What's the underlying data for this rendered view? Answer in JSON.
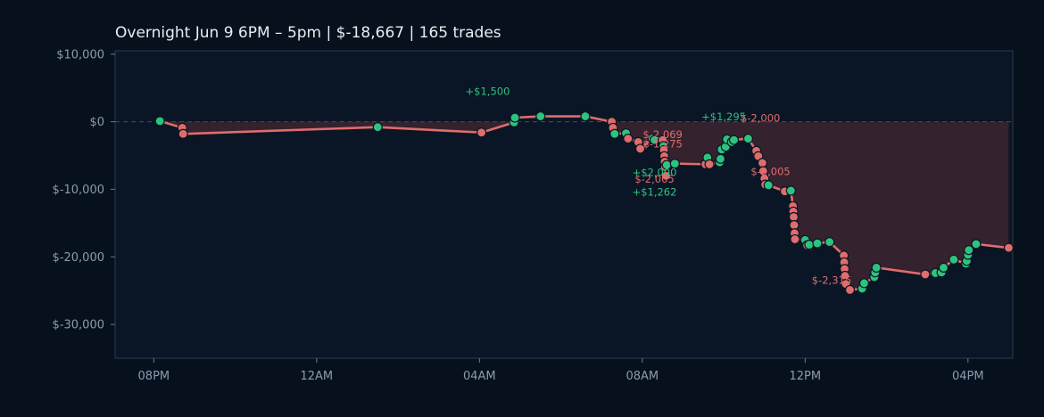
{
  "chart_data": {
    "type": "line",
    "title": "Overnight  Jun 9 6PM – 5pm  |  $-18,667  |  165 trades",
    "xlabel": "",
    "ylabel": "",
    "x_unit": "hours since Jun 9 12:00 PM",
    "xlim": [
      7.05,
      29.1
    ],
    "ylim": [
      -35000,
      10500
    ],
    "x_ticks": [
      {
        "x": 8,
        "label": "08PM"
      },
      {
        "x": 12,
        "label": "12AM"
      },
      {
        "x": 16,
        "label": "04AM"
      },
      {
        "x": 20,
        "label": "08AM"
      },
      {
        "x": 24,
        "label": "12PM"
      },
      {
        "x": 28,
        "label": "04PM"
      }
    ],
    "y_ticks": [
      {
        "y": 10000,
        "label": "$10,000"
      },
      {
        "y": 0,
        "label": "$0"
      },
      {
        "y": -10000,
        "label": "$-10,000"
      },
      {
        "y": -20000,
        "label": "$-20,000"
      },
      {
        "y": -30000,
        "label": "$-30,000"
      }
    ],
    "grid": false,
    "zero_line": true,
    "colors": {
      "background": "#07111d",
      "plot_background": "#0a1626",
      "line": "#e06c6c",
      "win": "#2ec27e",
      "loss": "#e06c6c",
      "fill": "#3a2431",
      "axis": "#2a3a4f",
      "text": "#e6edf3",
      "tick_text": "#8b9bb0"
    },
    "series": [
      {
        "points": [
          {
            "x": 8.15,
            "y": 100,
            "r": "w"
          },
          {
            "x": 8.7,
            "y": -900,
            "r": "l"
          },
          {
            "x": 8.72,
            "y": -1800,
            "r": "l"
          },
          {
            "x": 13.5,
            "y": -800,
            "r": "w"
          },
          {
            "x": 16.05,
            "y": -1600,
            "r": "l"
          },
          {
            "x": 16.85,
            "y": -100,
            "r": "w"
          },
          {
            "x": 16.87,
            "y": 600,
            "r": "w"
          },
          {
            "x": 17.5,
            "y": 800,
            "r": "w"
          },
          {
            "x": 18.6,
            "y": 800,
            "r": "w"
          },
          {
            "x": 19.25,
            "y": 0,
            "r": "l"
          },
          {
            "x": 19.28,
            "y": -900,
            "r": "l"
          },
          {
            "x": 19.32,
            "y": -1800,
            "r": "w"
          },
          {
            "x": 19.6,
            "y": -1700,
            "r": "w"
          },
          {
            "x": 19.65,
            "y": -2500,
            "r": "l"
          },
          {
            "x": 19.9,
            "y": -3000,
            "r": "l"
          },
          {
            "x": 19.95,
            "y": -4000,
            "r": "l"
          },
          {
            "x": 20.25,
            "y": -2500,
            "r": "w"
          },
          {
            "x": 20.3,
            "y": -2700,
            "r": "w"
          },
          {
            "x": 20.5,
            "y": -2700,
            "r": "l"
          },
          {
            "x": 20.52,
            "y": -3600,
            "r": "w"
          },
          {
            "x": 20.53,
            "y": -4200,
            "r": "l"
          },
          {
            "x": 20.54,
            "y": -5100,
            "r": "l"
          },
          {
            "x": 20.55,
            "y": -5900,
            "r": "l"
          },
          {
            "x": 20.56,
            "y": -6700,
            "r": "l"
          },
          {
            "x": 20.58,
            "y": -8000,
            "r": "l"
          },
          {
            "x": 20.6,
            "y": -6400,
            "r": "w"
          },
          {
            "x": 20.8,
            "y": -6200,
            "r": "w"
          },
          {
            "x": 21.55,
            "y": -6300,
            "r": "l"
          },
          {
            "x": 21.6,
            "y": -5300,
            "r": "w"
          },
          {
            "x": 21.65,
            "y": -6300,
            "r": "l"
          },
          {
            "x": 21.9,
            "y": -6000,
            "r": "w"
          },
          {
            "x": 21.92,
            "y": -5500,
            "r": "w"
          },
          {
            "x": 21.95,
            "y": -4100,
            "r": "w"
          },
          {
            "x": 22.05,
            "y": -3700,
            "r": "w"
          },
          {
            "x": 22.08,
            "y": -2600,
            "r": "w"
          },
          {
            "x": 22.2,
            "y": -3000,
            "r": "w"
          },
          {
            "x": 22.25,
            "y": -2700,
            "r": "w"
          },
          {
            "x": 22.6,
            "y": -2500,
            "r": "w"
          },
          {
            "x": 22.8,
            "y": -4300,
            "r": "l"
          },
          {
            "x": 22.85,
            "y": -5100,
            "r": "l"
          },
          {
            "x": 22.95,
            "y": -6100,
            "r": "l"
          },
          {
            "x": 22.97,
            "y": -7300,
            "r": "l"
          },
          {
            "x": 23.0,
            "y": -8400,
            "r": "l"
          },
          {
            "x": 23.02,
            "y": -9300,
            "r": "l"
          },
          {
            "x": 23.1,
            "y": -9400,
            "r": "w"
          },
          {
            "x": 23.5,
            "y": -10300,
            "r": "l"
          },
          {
            "x": 23.65,
            "y": -10200,
            "r": "w"
          },
          {
            "x": 23.7,
            "y": -12500,
            "r": "l"
          },
          {
            "x": 23.71,
            "y": -13300,
            "r": "l"
          },
          {
            "x": 23.72,
            "y": -14100,
            "r": "l"
          },
          {
            "x": 23.73,
            "y": -15300,
            "r": "l"
          },
          {
            "x": 23.74,
            "y": -16500,
            "r": "l"
          },
          {
            "x": 23.75,
            "y": -17400,
            "r": "l"
          },
          {
            "x": 24.0,
            "y": -17500,
            "r": "w"
          },
          {
            "x": 24.05,
            "y": -18300,
            "r": "l"
          },
          {
            "x": 24.1,
            "y": -18200,
            "r": "w"
          },
          {
            "x": 24.3,
            "y": -18000,
            "r": "w"
          },
          {
            "x": 24.6,
            "y": -17800,
            "r": "w"
          },
          {
            "x": 24.95,
            "y": -19800,
            "r": "l"
          },
          {
            "x": 24.96,
            "y": -20800,
            "r": "l"
          },
          {
            "x": 24.97,
            "y": -21800,
            "r": "l"
          },
          {
            "x": 24.98,
            "y": -22800,
            "r": "l"
          },
          {
            "x": 25.0,
            "y": -24000,
            "r": "l"
          },
          {
            "x": 25.1,
            "y": -24900,
            "r": "l"
          },
          {
            "x": 25.4,
            "y": -24700,
            "r": "w"
          },
          {
            "x": 25.45,
            "y": -23900,
            "r": "w"
          },
          {
            "x": 25.7,
            "y": -23000,
            "r": "w"
          },
          {
            "x": 25.72,
            "y": -22300,
            "r": "w"
          },
          {
            "x": 25.75,
            "y": -21600,
            "r": "w"
          },
          {
            "x": 26.95,
            "y": -22600,
            "r": "l"
          },
          {
            "x": 27.2,
            "y": -22400,
            "r": "w"
          },
          {
            "x": 27.35,
            "y": -22300,
            "r": "w"
          },
          {
            "x": 27.4,
            "y": -21600,
            "r": "w"
          },
          {
            "x": 27.65,
            "y": -20400,
            "r": "w"
          },
          {
            "x": 27.95,
            "y": -21000,
            "r": "w"
          },
          {
            "x": 27.97,
            "y": -20600,
            "r": "w"
          },
          {
            "x": 28.0,
            "y": -19700,
            "r": "w"
          },
          {
            "x": 28.02,
            "y": -19000,
            "r": "w"
          },
          {
            "x": 28.2,
            "y": -18100,
            "r": "w"
          },
          {
            "x": 29.0,
            "y": -18667,
            "r": "l"
          }
        ]
      }
    ],
    "annotations": [
      {
        "x": 16.2,
        "y": 4000,
        "text": "+$1,500",
        "kind": "win"
      },
      {
        "x": 20.5,
        "y": -2400,
        "text": "$-2,069",
        "kind": "loss"
      },
      {
        "x": 20.5,
        "y": -3800,
        "text": "$-1,275",
        "kind": "loss"
      },
      {
        "x": 20.3,
        "y": -8000,
        "text": "+$2,000",
        "kind": "win"
      },
      {
        "x": 20.3,
        "y": -9000,
        "text": "$-2,005",
        "kind": "loss"
      },
      {
        "x": 20.3,
        "y": -10900,
        "text": "+$1,262",
        "kind": "win"
      },
      {
        "x": 22.0,
        "y": 200,
        "text": "+$1,295",
        "kind": "win"
      },
      {
        "x": 22.9,
        "y": 0,
        "text": "$-2,000",
        "kind": "loss"
      },
      {
        "x": 23.15,
        "y": -7900,
        "text": "$-2,005",
        "kind": "loss"
      },
      {
        "x": 24.65,
        "y": -24000,
        "text": "$-2,315",
        "kind": "loss"
      }
    ]
  }
}
